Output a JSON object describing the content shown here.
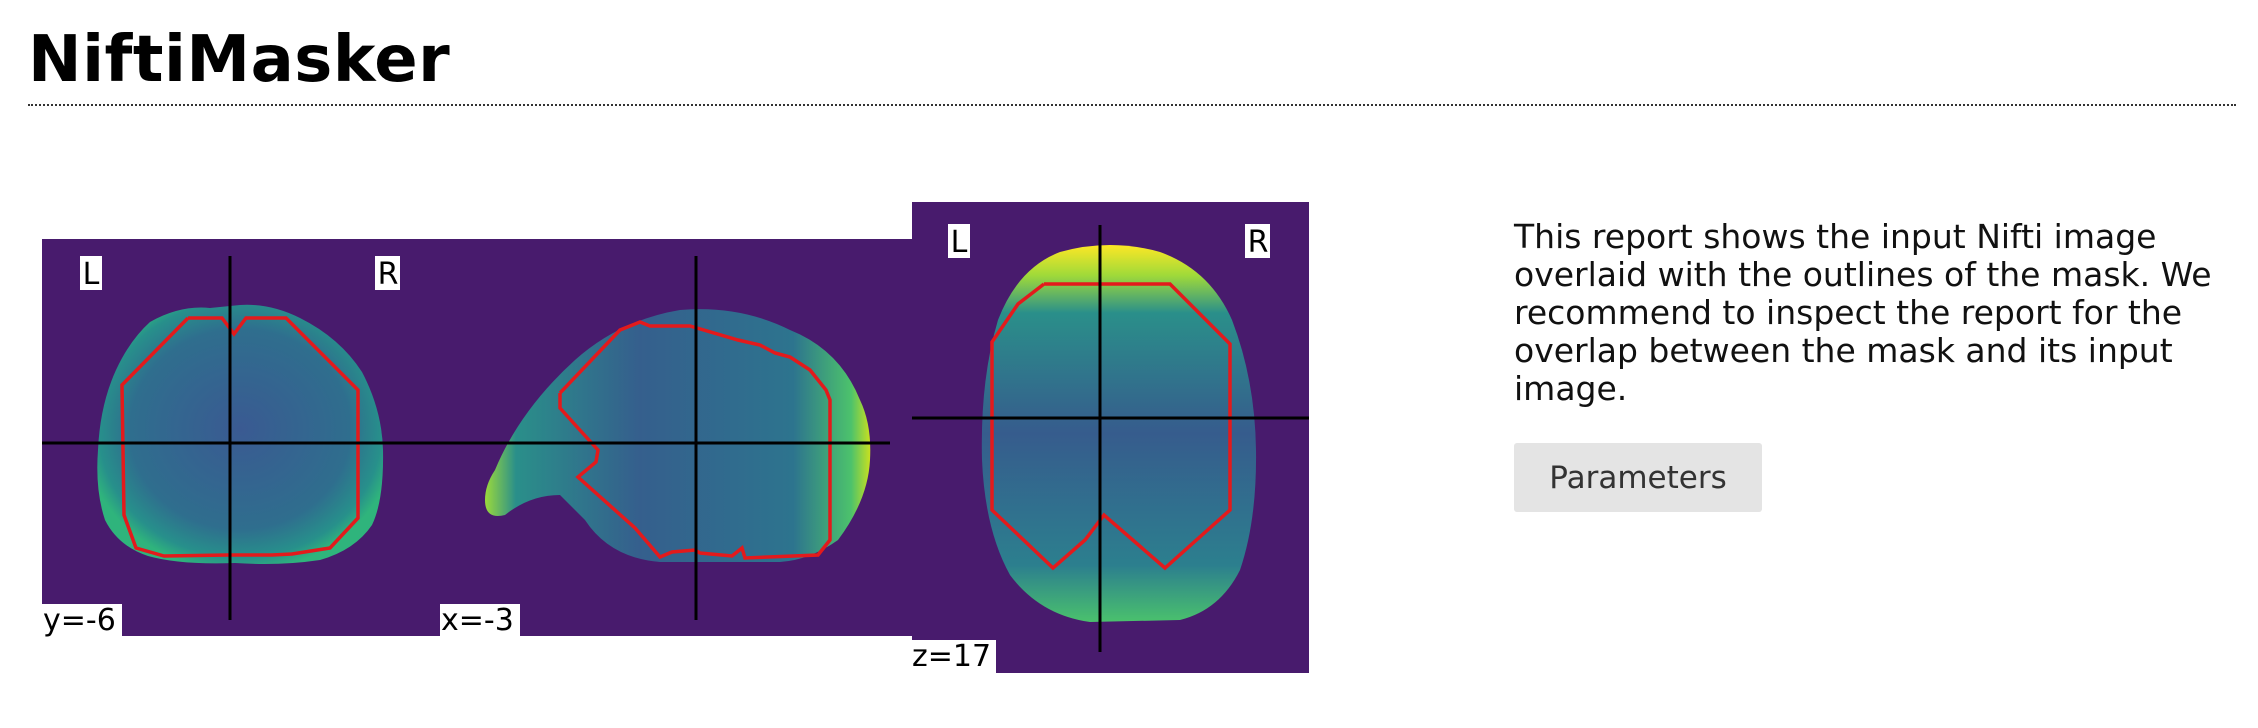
{
  "page": {
    "title": "NiftiMasker"
  },
  "figure": {
    "views": [
      {
        "coord_label": "y=-6",
        "left_marker": "L",
        "right_marker": "R"
      },
      {
        "coord_label": "x=-3"
      },
      {
        "coord_label": "z=17",
        "left_marker": "L",
        "right_marker": "R"
      }
    ],
    "colors": {
      "background": "#481b6d",
      "mask_outline": "#e31a1c",
      "crosshair": "#000000"
    }
  },
  "description": "This report shows the input Nifti image overlaid with the outlines of the mask. We recommend to inspect the report for the overlap between the mask and its input image.",
  "parameters_button": {
    "label": "Parameters"
  }
}
